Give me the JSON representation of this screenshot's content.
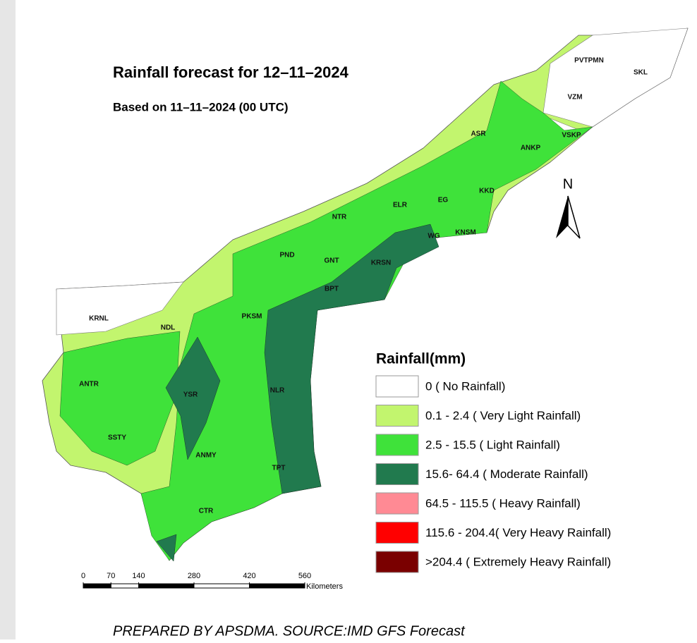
{
  "title": "Rainfall forecast for 12–11–2024",
  "subtitle": "Based on 11–11–2024 (00 UTC)",
  "districts": [
    {
      "label": "PVTPMN"
    },
    {
      "label": "SKL"
    },
    {
      "label": "VZM"
    },
    {
      "label": "ASR"
    },
    {
      "label": "VSKP"
    },
    {
      "label": "ANKP"
    },
    {
      "label": "KKD"
    },
    {
      "label": "EG"
    },
    {
      "label": "ELR"
    },
    {
      "label": "NTR"
    },
    {
      "label": "WG"
    },
    {
      "label": "KNSM"
    },
    {
      "label": "PND"
    },
    {
      "label": "GNT"
    },
    {
      "label": "KRSN"
    },
    {
      "label": "BPT"
    },
    {
      "label": "KRNL"
    },
    {
      "label": "NDL"
    },
    {
      "label": "PKSM"
    },
    {
      "label": "ANTR"
    },
    {
      "label": "YSR"
    },
    {
      "label": "NLR"
    },
    {
      "label": "SSTY"
    },
    {
      "label": "ANMY"
    },
    {
      "label": "TPT"
    },
    {
      "label": "CTR"
    }
  ],
  "legend": {
    "title": "Rainfall(mm)",
    "items": [
      {
        "label": "0 ( No Rainfall)",
        "color": "#ffffff"
      },
      {
        "label": "0.1 - 2.4 ( Very Light Rainfall)",
        "color": "#c2f56e"
      },
      {
        "label": "2.5 - 15.5 ( Light Rainfall)",
        "color": "#3fe23a"
      },
      {
        "label": "15.6- 64.4 ( Moderate Rainfall)",
        "color": "#217a4e"
      },
      {
        "label": "64.5 - 115.5 ( Heavy Rainfall)",
        "color": "#ff8a94"
      },
      {
        "label": "115.6 - 204.4( Very Heavy Rainfall)",
        "color": "#ff0000"
      },
      {
        "label": ">204.4 ( Extremely Heavy Rainfall)",
        "color": "#7a0000"
      }
    ]
  },
  "north": "N",
  "scale_bar": {
    "ticks": [
      0,
      70,
      140,
      280,
      420,
      560
    ],
    "unit": "Kilometers"
  },
  "footer": "PREPARED BY APSDMA. SOURCE:IMD GFS Forecast"
}
